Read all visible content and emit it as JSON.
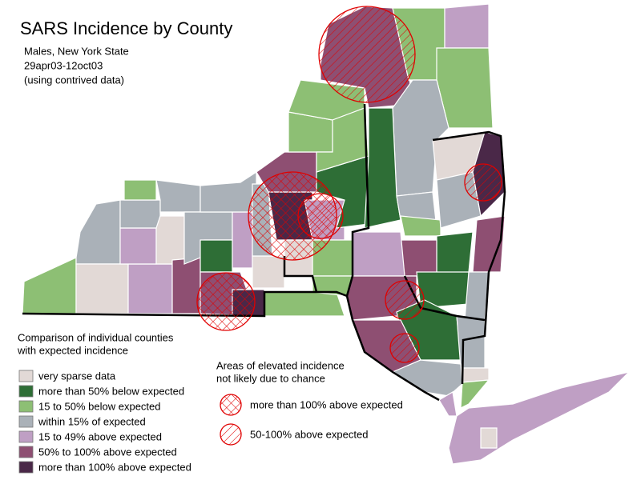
{
  "title": "SARS Incidence by County",
  "subtitle": [
    "Males, New York State",
    "29apr03-12oct03",
    "(using contrived data)"
  ],
  "county_legend": {
    "title": [
      "Comparison of individual counties",
      "with expected incidence"
    ],
    "items": [
      {
        "label": "very sparse data",
        "color": "#e2d9d6"
      },
      {
        "label": "more than 50% below expected",
        "color": "#2e6e36"
      },
      {
        "label": "15 to 50% below expected",
        "color": "#8dbf74"
      },
      {
        "label": "within 15% of expected",
        "color": "#aab1b8"
      },
      {
        "label": "15 to 49% above expected",
        "color": "#bf9fc4"
      },
      {
        "label": "50% to 100% above expected",
        "color": "#8e4f72"
      },
      {
        "label": "more than 100% above expected",
        "color": "#4a2848"
      }
    ]
  },
  "area_legend": {
    "title": [
      "Areas of elevated incidence",
      "not likely due to chance"
    ],
    "items": [
      {
        "label": "more than 100% above expected",
        "pattern": "cross"
      },
      {
        "label": "50-100% above expected",
        "pattern": "diag"
      }
    ]
  }
}
